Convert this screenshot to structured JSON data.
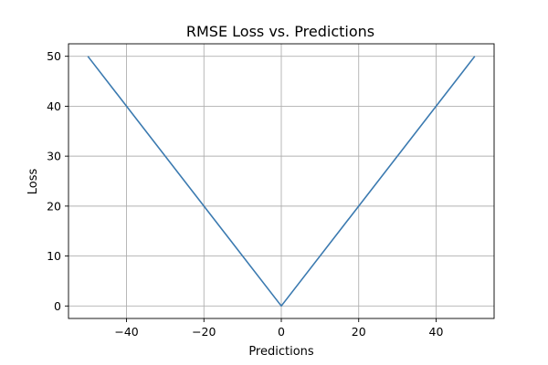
{
  "chart_data": {
    "type": "line",
    "title": "RMSE Loss vs. Predictions",
    "xlabel": "Predictions",
    "ylabel": "Loss",
    "xlim": [
      -55,
      55
    ],
    "ylim": [
      -2.5,
      52.5
    ],
    "x_ticks": [
      -40,
      -20,
      0,
      20,
      40
    ],
    "y_ticks": [
      0,
      10,
      20,
      30,
      40,
      50
    ],
    "x_tick_labels": [
      "−40",
      "−20",
      "0",
      "20",
      "40"
    ],
    "y_tick_labels": [
      "0",
      "10",
      "20",
      "30",
      "40",
      "50"
    ],
    "grid": true,
    "series": [
      {
        "color": "#3b7ab0",
        "x": [
          -50,
          0,
          50
        ],
        "y": [
          50,
          0,
          50
        ]
      }
    ]
  }
}
